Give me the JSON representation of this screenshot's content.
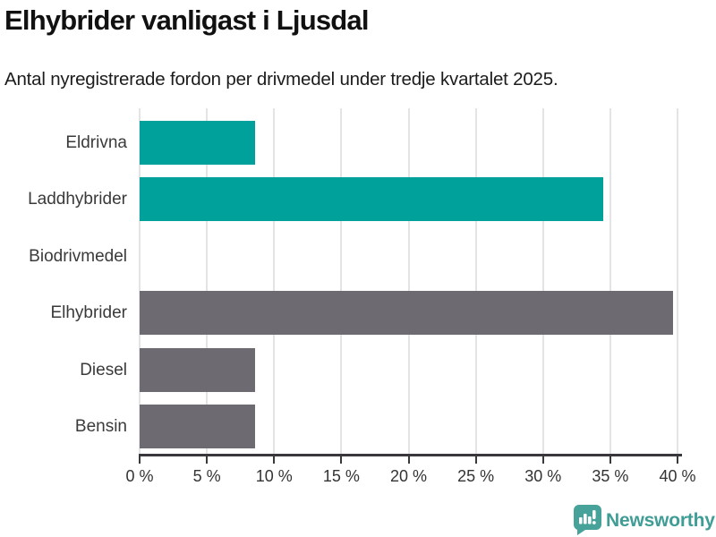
{
  "title": "Elhybrider vanligast i Ljusdal",
  "subtitle": "Antal nyregistrerade fordon per drivmedel under tredje kvartalet 2025.",
  "chart_data": {
    "type": "bar",
    "orientation": "horizontal",
    "title": "Elhybrider vanligast i Ljusdal",
    "subtitle": "Antal nyregistrerade fordon per drivmedel under tredje kvartalet 2025.",
    "categories": [
      "Eldrivna",
      "Laddhybrider",
      "Biodrivmedel",
      "Elhybrider",
      "Diesel",
      "Bensin"
    ],
    "values": [
      8.6,
      34.5,
      0,
      39.7,
      8.6,
      8.6
    ],
    "unit": "%",
    "xlim": [
      0,
      40
    ],
    "x_tick_values": [
      0,
      5,
      10,
      15,
      20,
      25,
      30,
      35,
      40
    ],
    "x_tick_labels": [
      "0 %",
      "5 %",
      "10 %",
      "15 %",
      "20 %",
      "25 %",
      "30 %",
      "35 %",
      "40 %"
    ],
    "grid": true,
    "legend": "none",
    "bar_colors": [
      "#00a19a",
      "#00a19a",
      "#00a19a",
      "#6d6a72",
      "#6d6a72",
      "#6d6a72"
    ]
  },
  "colors": {
    "teal": "#00a19a",
    "gray": "#6d6a72",
    "gridline": "#e4e4e6",
    "axis": "#3a373d",
    "logo_teal": "#3f9d96"
  },
  "footer": {
    "brand": "Newsworthy",
    "logo_icon": "bar-chart-speech-bubble-icon"
  }
}
